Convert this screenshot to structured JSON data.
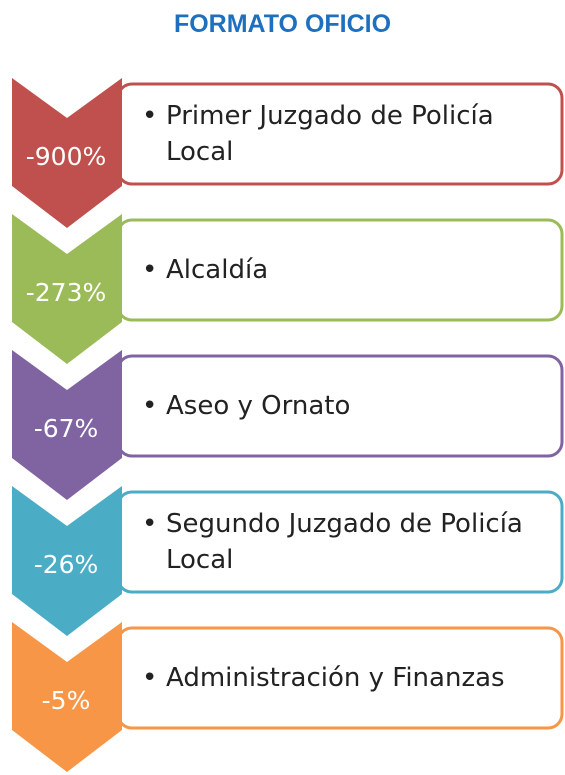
{
  "title": "FORMATO OFICIO",
  "items": [
    {
      "label": "Primer Juzgado de Policía Local",
      "value": "-900%",
      "color": "#c0504d"
    },
    {
      "label": "Alcaldía",
      "value": "-273%",
      "color": "#9bbb59"
    },
    {
      "label": "Aseo y Ornato",
      "value": "-67%",
      "color": "#8064a2"
    },
    {
      "label": "Segundo Juzgado de Policía Local",
      "value": "-26%",
      "color": "#4bacc6"
    },
    {
      "label": "Administración y Finanzas",
      "value": "-5%",
      "color": "#f79646"
    }
  ]
}
